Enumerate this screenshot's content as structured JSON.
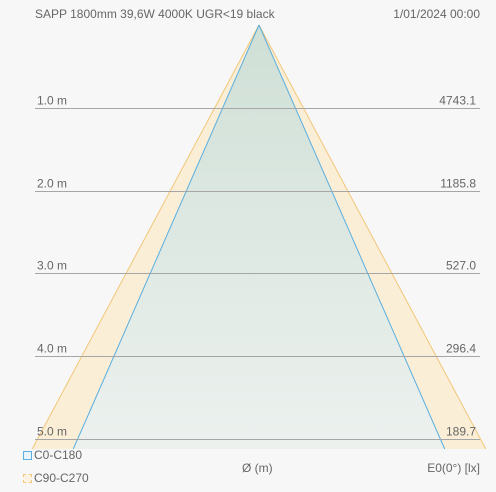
{
  "header": {
    "product": "SAPP 1800mm 39,6W 4000K UGR<19 black",
    "datetime": "1/01/2024 00:00"
  },
  "chart_data": {
    "type": "area",
    "title": "SAPP 1800mm 39,6W 4000K UGR<19 black",
    "xlabel": "Ø (m)",
    "ylabel": "E0(0°) [lx]",
    "distances_label": [
      "1.0 m",
      "2.0 m",
      "3.0 m",
      "4.0 m",
      "5.0 m"
    ],
    "distances_m": [
      1,
      2,
      3,
      4,
      5
    ],
    "illuminance_lx": [
      4743.1,
      1185.8,
      527.0,
      296.4,
      189.7
    ],
    "illuminance_label": [
      "4743.1",
      "1185.8",
      "527.0",
      "296.4",
      "189.7"
    ],
    "series": [
      {
        "name": "C0-C180",
        "color": "#5aafe0",
        "fill": "#cfe3ea",
        "half_width_ratio": 0.438
      },
      {
        "name": "C90-C270",
        "color": "#f2c77a",
        "fill": "#fbecd2",
        "half_width_ratio": 0.535
      }
    ],
    "legend_position": "bottom-left",
    "grid": true
  }
}
